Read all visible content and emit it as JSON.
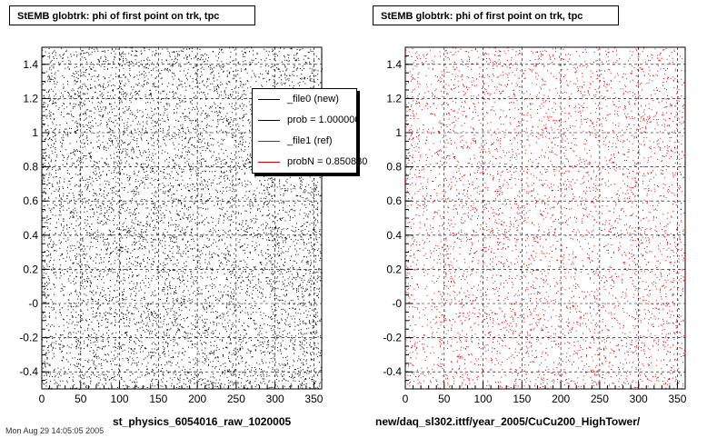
{
  "panels": [
    {
      "title": "StEMB globtrk: phi of first point on trk, tpc",
      "xlabel": "st_physics_6054016_raw_1020005",
      "point_color": "#000000"
    },
    {
      "title": "StEMB globtrk: phi of first point on trk, tpc",
      "xlabel": "new/daq_sl302.ittf/year_2005/CuCu200_HighTower/",
      "point_color": "#dd0000"
    }
  ],
  "legend": {
    "items": [
      {
        "label": "_file0 (new)",
        "color": "#000000"
      },
      {
        "label": "prob = 1.000000",
        "color": "#000000"
      },
      {
        "label": "_file1 (ref)",
        "color": "#dd0000"
      },
      {
        "label": "probN = 0.850830",
        "color": "#dd0000"
      }
    ]
  },
  "footer": "Mon Aug 29 14:05:05 2005",
  "chart_data": [
    {
      "type": "scatter",
      "title": "StEMB globtrk: phi of first point on trk, tpc",
      "xlabel": "st_physics_6054016_raw_1020005",
      "ylabel": "",
      "xlim": [
        0,
        360
      ],
      "ylim": [
        -0.5,
        1.5
      ],
      "xticks": [
        "0",
        "50",
        "100",
        "150",
        "200",
        "250",
        "300",
        "350"
      ],
      "yticks": [
        "-0.4",
        "-0.2",
        "-0",
        "0.2",
        "0.4",
        "0.6",
        "0.8",
        "1",
        "1.2",
        "1.4"
      ],
      "grid": true,
      "legend_position": "top-right",
      "distribution": "dense uniform scatter of points over x 0-360 and y -0.5 to 1.5 with sparse vertical gaps near x = 20, 30, 150, 250",
      "point_color": "#000000"
    },
    {
      "type": "scatter",
      "title": "StEMB globtrk: phi of first point on trk, tpc",
      "xlabel": "new/daq_sl302.ittf/year_2005/CuCu200_HighTower/",
      "ylabel": "",
      "xlim": [
        0,
        360
      ],
      "ylim": [
        -0.5,
        1.5
      ],
      "xticks": [
        "0",
        "50",
        "100",
        "150",
        "200",
        "250",
        "300",
        "350"
      ],
      "yticks": [
        "-0.4",
        "-0.2",
        "-0",
        "0.2",
        "0.4",
        "0.6",
        "0.8",
        "1",
        "1.2",
        "1.4"
      ],
      "grid": true,
      "distribution": "dense uniform scatter of points over x 0-360 and y -0.5 to 1.5 with sparse vertical gaps near x = 20, 30, 150, 250",
      "point_color": "#dd0000"
    }
  ]
}
